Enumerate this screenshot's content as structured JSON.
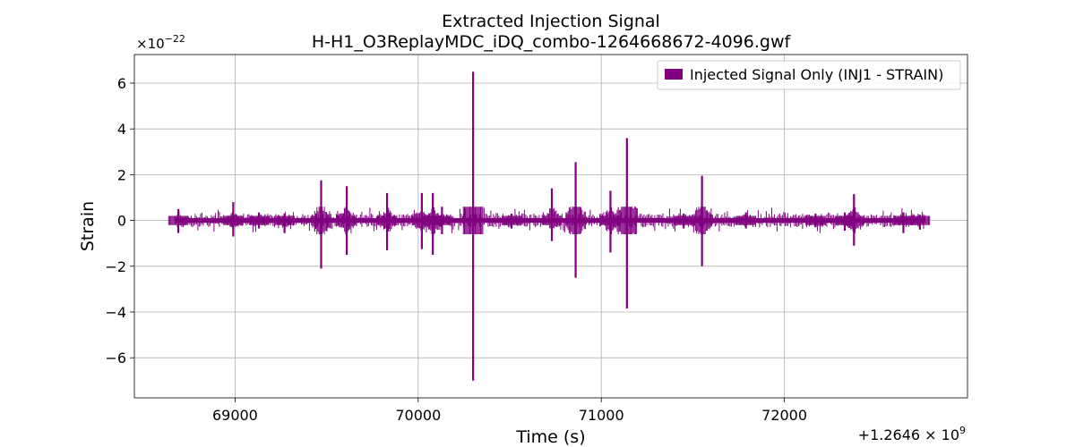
{
  "chart_data": {
    "type": "line",
    "title_line1": "Extracted Injection Signal",
    "title_line2": "H-H1_O3ReplayMDC_iDQ_combo-1264668672-4096.gwf",
    "xlabel": "Time (s)",
    "ylabel": "Strain",
    "x_offset_label": "+1.2646 × 10^9",
    "y_multiplier_label": "×10^−22",
    "x_offset": 1264600000,
    "y_scale": 1e-22,
    "xlim": [
      68450,
      73000
    ],
    "ylim": [
      -7.75,
      7.25
    ],
    "x_ticks": [
      69000,
      70000,
      71000,
      72000
    ],
    "x_tick_labels": [
      "69000",
      "70000",
      "71000",
      "72000"
    ],
    "y_ticks": [
      -6,
      -4,
      -2,
      0,
      2,
      4,
      6
    ],
    "y_tick_labels": [
      "−6",
      "−4",
      "−2",
      "0",
      "2",
      "4",
      "6"
    ],
    "grid": true,
    "legend_position": "top-right",
    "series": [
      {
        "name": "Injected Signal Only (INJ1 - STRAIN)",
        "color": "#800080",
        "x_range": [
          68672,
          72768
        ],
        "baseline_band": [
          -0.1,
          0.1
        ],
        "bursts": [
          {
            "x": 68690,
            "ymax": 0.5,
            "ymin": -0.55
          },
          {
            "x": 68990,
            "ymax": 0.8,
            "ymin": -0.7
          },
          {
            "x": 69130,
            "ymax": 0.35,
            "ymin": -0.35
          },
          {
            "x": 69270,
            "ymax": 0.3,
            "ymin": -0.55
          },
          {
            "x": 69470,
            "ymax": 1.75,
            "ymin": -2.1
          },
          {
            "x": 69610,
            "ymax": 1.5,
            "ymin": -1.5
          },
          {
            "x": 69830,
            "ymax": 1.2,
            "ymin": -1.3
          },
          {
            "x": 70020,
            "ymax": 1.2,
            "ymin": -1.25
          },
          {
            "x": 70080,
            "ymax": 1.2,
            "ymin": -1.5
          },
          {
            "x": 70130,
            "ymax": 0.6,
            "ymin": -0.6
          },
          {
            "x": 70300,
            "ymax": 6.5,
            "ymin": -7.0
          },
          {
            "x": 70510,
            "ymax": 0.3,
            "ymin": -0.35
          },
          {
            "x": 70730,
            "ymax": 1.4,
            "ymin": -0.9
          },
          {
            "x": 70860,
            "ymax": 2.55,
            "ymin": -2.5
          },
          {
            "x": 71050,
            "ymax": 1.3,
            "ymin": -1.4
          },
          {
            "x": 71140,
            "ymax": 3.6,
            "ymin": -3.85
          },
          {
            "x": 71450,
            "ymax": 0.3,
            "ymin": -0.35
          },
          {
            "x": 71550,
            "ymax": 1.95,
            "ymin": -2.0
          },
          {
            "x": 71790,
            "ymax": 0.35,
            "ymin": -0.35
          },
          {
            "x": 72170,
            "ymax": 0.3,
            "ymin": -0.3
          },
          {
            "x": 72330,
            "ymax": 0.35,
            "ymin": -0.45
          },
          {
            "x": 72380,
            "ymax": 1.15,
            "ymin": -1.1
          },
          {
            "x": 72650,
            "ymax": 0.35,
            "ymin": -0.55
          },
          {
            "x": 72740,
            "ymax": 0.25,
            "ymin": -0.4
          }
        ]
      }
    ]
  }
}
